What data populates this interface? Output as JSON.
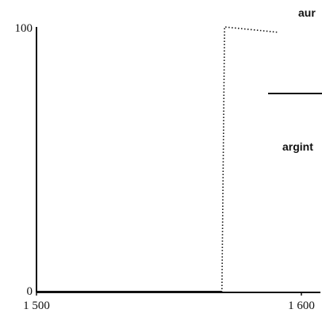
{
  "chart_data": {
    "type": "line",
    "xlim": [
      1500,
      1600
    ],
    "ylim": [
      0,
      100
    ],
    "xticks": [
      1500,
      1600
    ],
    "xtick_labels": [
      "1 500",
      "1 600"
    ],
    "yticks": [
      0,
      100
    ],
    "ytick_labels": [
      "0",
      "100"
    ],
    "grid": false,
    "legend": "inline-right",
    "series": [
      {
        "name": "aur",
        "style": "dotted",
        "color": "#111111",
        "x": [
          1570,
          1571,
          1591
        ],
        "y": [
          0,
          100,
          98
        ]
      },
      {
        "name": "argint",
        "style": "solid",
        "color": "#111111",
        "x": [
          1500,
          1570
        ],
        "y": [
          0,
          0
        ]
      }
    ],
    "legend_entries": [
      {
        "label": "aur",
        "line": "dotted"
      },
      {
        "label": "argint",
        "line": "solid"
      }
    ]
  }
}
